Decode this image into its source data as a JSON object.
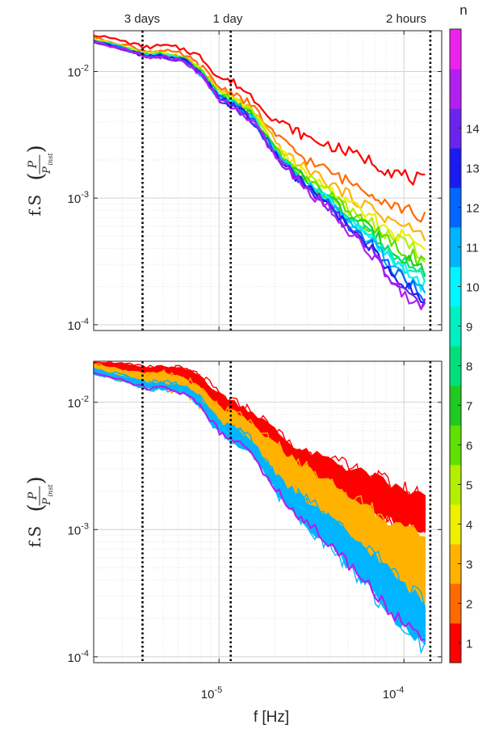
{
  "chart_data": {
    "type": "line",
    "shared": {
      "xscale": "log",
      "xlim": [
        2.1e-06,
        0.00016
      ],
      "x_ticks": [
        {
          "value": 1e-05,
          "base": "10",
          "exp": "-5"
        },
        {
          "value": 0.0001,
          "base": "10",
          "exp": "-4"
        }
      ],
      "xlabel": "f [Hz]",
      "ylabel_main": "f.S",
      "ylabel_frac_num": "P",
      "ylabel_frac_den": "P",
      "ylabel_frac_den_sub": "inst",
      "grid": true
    },
    "reference_lines": [
      {
        "x": 3.858e-06,
        "label": "3 days"
      },
      {
        "x": 1.157e-05,
        "label": "1 day"
      },
      {
        "x": 0.0001389,
        "label": "2 hours"
      }
    ],
    "colorbar": {
      "label": "n",
      "ticks": [
        "1",
        "2",
        "3",
        "4",
        "5",
        "6",
        "7",
        "8",
        "9",
        "10",
        "11",
        "12",
        "13",
        "14"
      ],
      "colors": [
        "#ff0000",
        "#ff6a00",
        "#ffb300",
        "#eef000",
        "#b2f000",
        "#5fe000",
        "#1ecb1e",
        "#00e07a",
        "#00f0c0",
        "#00f6ff",
        "#00b4ff",
        "#0066ff",
        "#1a1af2",
        "#6a24ee",
        "#b31ff0",
        "#ee22ee"
      ]
    },
    "panels": [
      {
        "ylim": [
          9e-05,
          0.021
        ],
        "y_ticks": [
          {
            "value": 0.0001,
            "base": "10",
            "exp": "-4"
          },
          {
            "value": 0.001,
            "base": "10",
            "exp": "-3"
          },
          {
            "value": 0.01,
            "base": "10",
            "exp": "-2"
          }
        ],
        "series_note": "one curve per n = 1..15, colored by colorbar",
        "x": [
          2.1e-06,
          3e-06,
          4e-06,
          5e-06,
          6.5e-06,
          8e-06,
          1e-05,
          1.2e-05,
          1.5e-05,
          2e-05,
          2.5e-05,
          3e-05,
          4e-05,
          5e-05,
          6.5e-05,
          8e-05,
          0.0001,
          0.00013
        ],
        "series": [
          {
            "values": [
              0.0195,
              0.0175,
              0.0155,
              0.016,
              0.015,
              0.013,
              0.009,
              0.0082,
              0.0064,
              0.0042,
              0.0035,
              0.003,
              0.0026,
              0.0023,
              0.002,
              0.0017,
              0.0015,
              0.00135
            ]
          },
          {
            "values": [
              0.0185,
              0.0165,
              0.0145,
              0.0145,
              0.0135,
              0.011,
              0.0075,
              0.0068,
              0.0054,
              0.0032,
              0.0024,
              0.002,
              0.0016,
              0.00135,
              0.00115,
              0.00095,
              0.00082,
              0.0007
            ]
          },
          {
            "values": [
              0.018,
              0.016,
              0.014,
              0.014,
              0.013,
              0.0105,
              0.007,
              0.0062,
              0.005,
              0.0028,
              0.002,
              0.0017,
              0.0013,
              0.00105,
              0.00085,
              0.0007,
              0.0006,
              0.0005
            ]
          },
          {
            "values": [
              0.0178,
              0.0158,
              0.0138,
              0.0138,
              0.0128,
              0.0102,
              0.0068,
              0.006,
              0.0048,
              0.0026,
              0.0019,
              0.0015,
              0.00115,
              0.0009,
              0.00072,
              0.00058,
              0.00049,
              0.00041
            ]
          },
          {
            "values": [
              0.0177,
              0.0157,
              0.0137,
              0.0137,
              0.0127,
              0.0101,
              0.0067,
              0.0059,
              0.0047,
              0.0025,
              0.0018,
              0.00143,
              0.00108,
              0.00083,
              0.00065,
              0.00052,
              0.00043,
              0.00035
            ]
          },
          {
            "values": [
              0.0176,
              0.0156,
              0.0136,
              0.0136,
              0.0126,
              0.01,
              0.0066,
              0.0058,
              0.0046,
              0.00245,
              0.00175,
              0.00138,
              0.00103,
              0.00078,
              0.0006,
              0.00047,
              0.00038,
              0.00031
            ]
          },
          {
            "values": [
              0.0175,
              0.0155,
              0.0135,
              0.0135,
              0.0125,
              0.0099,
              0.0065,
              0.0057,
              0.0045,
              0.0024,
              0.0017,
              0.00134,
              0.00099,
              0.00074,
              0.00056,
              0.00043,
              0.00034,
              0.00027
            ]
          },
          {
            "values": [
              0.0175,
              0.0155,
              0.0135,
              0.0134,
              0.0124,
              0.0098,
              0.0064,
              0.0056,
              0.0045,
              0.00237,
              0.00167,
              0.00131,
              0.00096,
              0.00071,
              0.00053,
              0.0004,
              0.00031,
              0.00024
            ]
          },
          {
            "values": [
              0.0174,
              0.0154,
              0.0134,
              0.0133,
              0.0123,
              0.0097,
              0.0063,
              0.0056,
              0.0044,
              0.00234,
              0.00164,
              0.00128,
              0.00093,
              0.00068,
              0.0005,
              0.00037,
              0.00029,
              0.00022
            ]
          },
          {
            "values": [
              0.0174,
              0.0154,
              0.0134,
              0.0133,
              0.0123,
              0.0097,
              0.0063,
              0.0055,
              0.0044,
              0.00232,
              0.00162,
              0.00126,
              0.00091,
              0.00066,
              0.00048,
              0.00035,
              0.00027,
              0.0002
            ]
          },
          {
            "values": [
              0.0173,
              0.0153,
              0.0133,
              0.0132,
              0.0122,
              0.0096,
              0.0062,
              0.0055,
              0.0043,
              0.0023,
              0.0016,
              0.00124,
              0.00089,
              0.00064,
              0.00046,
              0.00033,
              0.00025,
              0.00018
            ]
          },
          {
            "values": [
              0.0173,
              0.0153,
              0.0133,
              0.0132,
              0.0122,
              0.0096,
              0.0062,
              0.0054,
              0.0043,
              0.00228,
              0.00158,
              0.00122,
              0.00087,
              0.00062,
              0.00044,
              0.00031,
              0.00023,
              0.000165
            ]
          },
          {
            "values": [
              0.0172,
              0.0152,
              0.0132,
              0.0131,
              0.0121,
              0.0095,
              0.0061,
              0.0054,
              0.0042,
              0.00226,
              0.00156,
              0.0012,
              0.00085,
              0.0006,
              0.00042,
              0.00029,
              0.00021,
              0.00015
            ]
          },
          {
            "values": [
              0.0172,
              0.0152,
              0.0132,
              0.0131,
              0.0121,
              0.0095,
              0.0061,
              0.0053,
              0.0042,
              0.00224,
              0.00154,
              0.00118,
              0.00083,
              0.00058,
              0.0004,
              0.00027,
              0.00019,
              0.00014
            ]
          },
          {
            "values": [
              0.0171,
              0.0151,
              0.0131,
              0.013,
              0.012,
              0.0094,
              0.006,
              0.0053,
              0.0041,
              0.00222,
              0.00152,
              0.00116,
              0.00081,
              0.00056,
              0.00038,
              0.00026,
              0.00018,
              0.00013
            ]
          }
        ]
      },
      {
        "ylim": [
          9e-05,
          0.021
        ],
        "y_ticks": [
          {
            "value": 0.0001,
            "base": "10",
            "exp": "-4"
          },
          {
            "value": 0.001,
            "base": "10",
            "exp": "-3"
          },
          {
            "value": 0.01,
            "base": "10",
            "exp": "-2"
          }
        ],
        "series_note": "bands of many curves for n = 1, 3, 11 with a magenta lower curve",
        "x": [
          2.1e-06,
          3e-06,
          4e-06,
          5e-06,
          6.5e-06,
          8e-06,
          1e-05,
          1.2e-05,
          1.5e-05,
          2e-05,
          2.5e-05,
          3e-05,
          4e-05,
          5e-05,
          6.5e-05,
          8e-05,
          0.0001,
          0.00013
        ],
        "bands": [
          {
            "color_index": 0,
            "lower": [
              0.018,
              0.0165,
              0.015,
              0.015,
              0.014,
              0.012,
              0.0085,
              0.0078,
              0.0058,
              0.0038,
              0.003,
              0.0025,
              0.0019,
              0.00165,
              0.0014,
              0.0012,
              0.00105,
              0.00095
            ],
            "upper": [
              0.021,
              0.02,
              0.0185,
              0.019,
              0.018,
              0.016,
              0.0115,
              0.01,
              0.0085,
              0.006,
              0.0045,
              0.004,
              0.0035,
              0.003,
              0.0027,
              0.0023,
              0.002,
              0.0018
            ]
          },
          {
            "color_index": 2,
            "lower": [
              0.017,
              0.015,
              0.013,
              0.013,
              0.012,
              0.0095,
              0.0062,
              0.0055,
              0.0043,
              0.0024,
              0.0016,
              0.0013,
              0.0009,
              0.00068,
              0.0005,
              0.00038,
              0.00031,
              0.00026
            ],
            "upper": [
              0.02,
              0.018,
              0.0165,
              0.017,
              0.0155,
              0.0125,
              0.009,
              0.0082,
              0.0066,
              0.0046,
              0.0036,
              0.003,
              0.0023,
              0.0018,
              0.0015,
              0.0012,
              0.001,
              0.00085
            ]
          },
          {
            "color_index": 10,
            "lower": [
              0.0168,
              0.0148,
              0.0128,
              0.0128,
              0.0118,
              0.0092,
              0.0058,
              0.005,
              0.004,
              0.0021,
              0.0014,
              0.0011,
              0.00075,
              0.00052,
              0.00036,
              0.00024,
              0.00017,
              0.000125
            ],
            "upper": [
              0.0182,
              0.0162,
              0.0142,
              0.0142,
              0.0132,
              0.0105,
              0.007,
              0.0062,
              0.005,
              0.0028,
              0.002,
              0.00165,
              0.0012,
              0.0009,
              0.00068,
              0.0005,
              0.00036,
              0.00026
            ]
          }
        ],
        "series": [
          {
            "color_index": 14,
            "values": [
              0.017,
              0.015,
              0.013,
              0.0129,
              0.0119,
              0.0093,
              0.0059,
              0.0052,
              0.004,
              0.00215,
              0.00145,
              0.00113,
              0.00078,
              0.00054,
              0.00037,
              0.00025,
              0.00018,
              0.00013
            ]
          }
        ]
      }
    ]
  }
}
